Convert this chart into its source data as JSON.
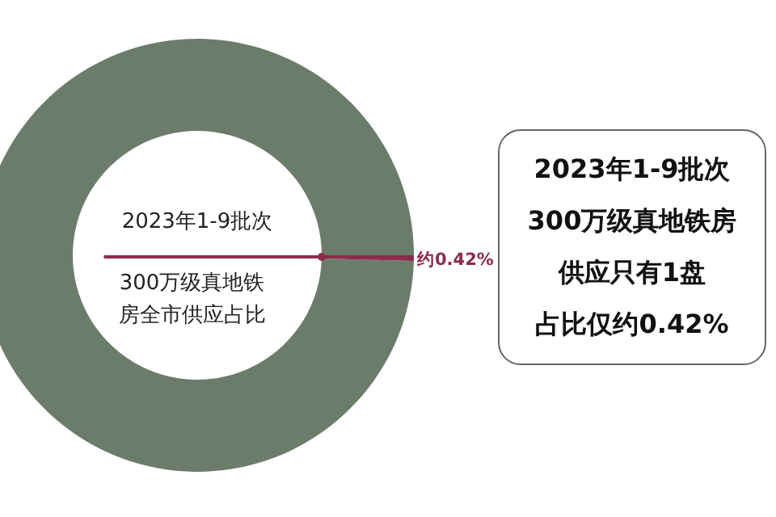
{
  "chart_data": {
    "type": "donut",
    "title": "2023年1-9批次",
    "subtitle": "300万级真地铁房全市供应占比",
    "categories": [
      null,
      null
    ],
    "values": [
      99.58,
      0.42
    ],
    "colors": [
      "#6b7d6a",
      "#8c2b4b"
    ],
    "value_labels": [
      null,
      "约0.42%"
    ],
    "annotations": [
      "2023年1-9批次",
      "300万级真地铁房",
      "供应只有1盘",
      "占比仅约0.42%"
    ]
  }
}
